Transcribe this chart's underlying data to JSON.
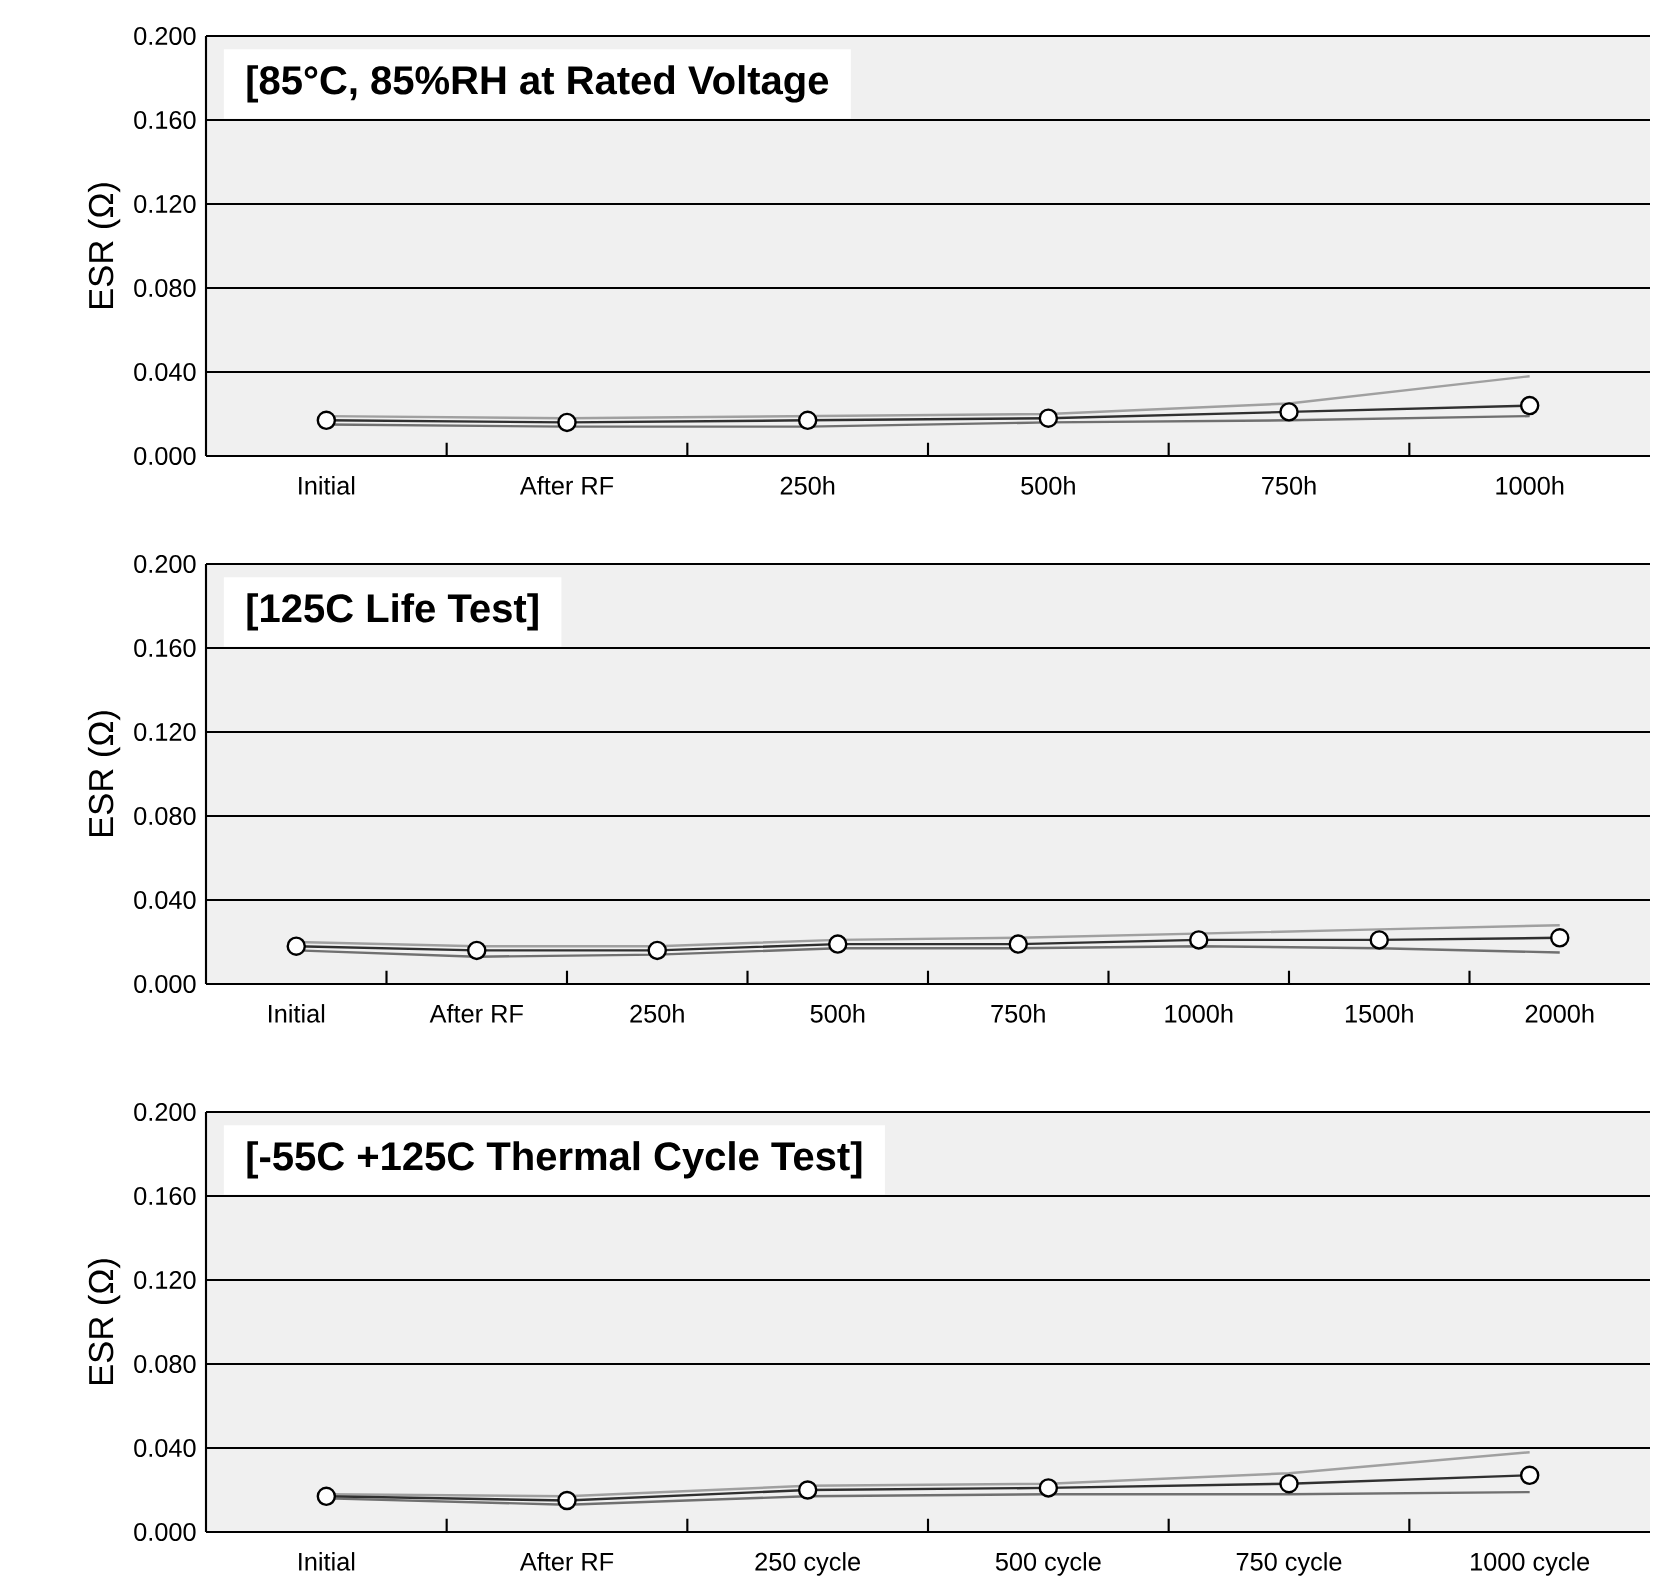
{
  "chart_data": [
    {
      "type": "line",
      "title": "[85°C, 85%RH at Rated Voltage",
      "ylabel": "ESR (Ω)",
      "categories": [
        "Initial",
        "After RF",
        "250h",
        "500h",
        "750h",
        "1000h"
      ],
      "ylim": [
        0,
        0.2
      ],
      "yticks": [
        {
          "value": 0,
          "label": "0.000"
        },
        {
          "value": 0.04,
          "label": "0.040"
        },
        {
          "value": 0.08,
          "label": "0.080"
        },
        {
          "value": 0.12,
          "label": "0.120"
        },
        {
          "value": 0.16,
          "label": "0.160"
        },
        {
          "value": 0.2,
          "label": "0.200"
        }
      ],
      "grid": "y",
      "series": [
        {
          "color": "#a0a0a0",
          "marker": "none",
          "values": [
            0.019,
            0.018,
            0.019,
            0.02,
            0.025,
            0.038
          ]
        },
        {
          "color": "#707070",
          "marker": "none",
          "values": [
            0.015,
            0.014,
            0.014,
            0.016,
            0.017,
            0.019
          ]
        },
        {
          "color": "#303030",
          "marker": "circle",
          "values": [
            0.017,
            0.016,
            0.017,
            0.018,
            0.021,
            0.024
          ]
        }
      ]
    },
    {
      "type": "line",
      "title": "[125C Life Test]",
      "ylabel": "ESR (Ω)",
      "categories": [
        "Initial",
        "After RF",
        "250h",
        "500h",
        "750h",
        "1000h",
        "1500h",
        "2000h"
      ],
      "ylim": [
        0,
        0.2
      ],
      "yticks": [
        {
          "value": 0,
          "label": "0.000"
        },
        {
          "value": 0.04,
          "label": "0.040"
        },
        {
          "value": 0.08,
          "label": "0.080"
        },
        {
          "value": 0.12,
          "label": "0.120"
        },
        {
          "value": 0.16,
          "label": "0.160"
        },
        {
          "value": 0.2,
          "label": "0.200"
        }
      ],
      "grid": "y",
      "series": [
        {
          "color": "#a0a0a0",
          "marker": "none",
          "values": [
            0.02,
            0.018,
            0.018,
            0.021,
            0.022,
            0.024,
            0.026,
            0.028
          ]
        },
        {
          "color": "#707070",
          "marker": "none",
          "values": [
            0.016,
            0.013,
            0.014,
            0.017,
            0.017,
            0.018,
            0.017,
            0.015
          ]
        },
        {
          "color": "#303030",
          "marker": "circle",
          "values": [
            0.018,
            0.016,
            0.016,
            0.019,
            0.019,
            0.021,
            0.021,
            0.022
          ]
        }
      ]
    },
    {
      "type": "line",
      "title": "[-55C +125C Thermal Cycle Test]",
      "ylabel": "ESR (Ω)",
      "categories": [
        "Initial",
        "After RF",
        "250 cycle",
        "500 cycle",
        "750 cycle",
        "1000 cycle"
      ],
      "ylim": [
        0,
        0.2
      ],
      "yticks": [
        {
          "value": 0,
          "label": "0.000"
        },
        {
          "value": 0.04,
          "label": "0.040"
        },
        {
          "value": 0.08,
          "label": "0.080"
        },
        {
          "value": 0.12,
          "label": "0.120"
        },
        {
          "value": 0.16,
          "label": "0.160"
        },
        {
          "value": 0.2,
          "label": "0.200"
        }
      ],
      "grid": "y",
      "series": [
        {
          "color": "#a0a0a0",
          "marker": "none",
          "values": [
            0.018,
            0.017,
            0.022,
            0.023,
            0.028,
            0.038
          ]
        },
        {
          "color": "#707070",
          "marker": "none",
          "values": [
            0.016,
            0.013,
            0.017,
            0.018,
            0.018,
            0.019
          ]
        },
        {
          "color": "#303030",
          "marker": "circle",
          "values": [
            0.017,
            0.015,
            0.02,
            0.021,
            0.023,
            0.027
          ]
        }
      ]
    }
  ]
}
